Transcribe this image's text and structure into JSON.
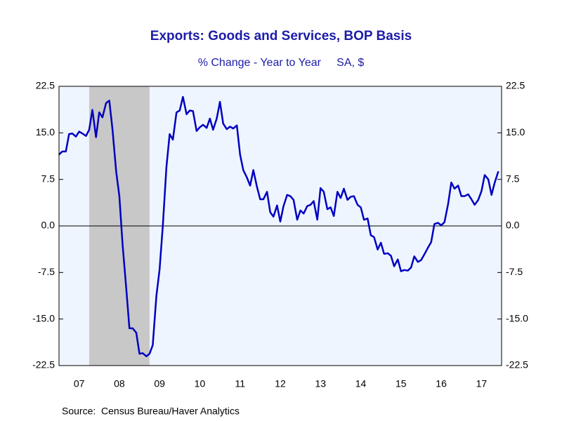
{
  "chart_data": {
    "type": "line",
    "title": "Exports: Goods and Services, BOP Basis",
    "subtitle": "% Change - Year to Year     SA, $",
    "source": "Source:  Census Bureau/Haver Analytics",
    "xlim": [
      2007,
      2018
    ],
    "xticks": [
      {
        "value": 2007.5,
        "label": "07"
      },
      {
        "value": 2008.5,
        "label": "08"
      },
      {
        "value": 2009.5,
        "label": "09"
      },
      {
        "value": 2010.5,
        "label": "10"
      },
      {
        "value": 2011.5,
        "label": "11"
      },
      {
        "value": 2012.5,
        "label": "12"
      },
      {
        "value": 2013.5,
        "label": "13"
      },
      {
        "value": 2014.5,
        "label": "14"
      },
      {
        "value": 2015.5,
        "label": "15"
      },
      {
        "value": 2016.5,
        "label": "16"
      },
      {
        "value": 2017.5,
        "label": "17"
      }
    ],
    "ylim": [
      -22.5,
      22.5
    ],
    "yticks": [
      22.5,
      {
        "value": 15,
        "label": "15.0"
      },
      7.5,
      {
        "value": 0,
        "label": "0.0"
      },
      -7.5,
      {
        "value": -15,
        "label": "-15.0"
      },
      -22.5
    ],
    "recession": [
      2007.75,
      2009.25
    ],
    "x": [
      2007.0,
      2007.08,
      2007.17,
      2007.25,
      2007.33,
      2007.42,
      2007.5,
      2007.58,
      2007.67,
      2007.75,
      2007.83,
      2007.92,
      2008.0,
      2008.08,
      2008.17,
      2008.25,
      2008.33,
      2008.42,
      2008.5,
      2008.58,
      2008.67,
      2008.75,
      2008.83,
      2008.92,
      2009.0,
      2009.08,
      2009.17,
      2009.25,
      2009.33,
      2009.42,
      2009.5,
      2009.58,
      2009.67,
      2009.75,
      2009.83,
      2009.92,
      2010.0,
      2010.08,
      2010.17,
      2010.25,
      2010.33,
      2010.42,
      2010.5,
      2010.58,
      2010.67,
      2010.75,
      2010.83,
      2010.92,
      2011.0,
      2011.08,
      2011.17,
      2011.25,
      2011.33,
      2011.42,
      2011.5,
      2011.58,
      2011.67,
      2011.75,
      2011.83,
      2011.92,
      2012.0,
      2012.08,
      2012.17,
      2012.25,
      2012.33,
      2012.42,
      2012.5,
      2012.58,
      2012.67,
      2012.75,
      2012.83,
      2012.92,
      2013.0,
      2013.08,
      2013.17,
      2013.25,
      2013.33,
      2013.42,
      2013.5,
      2013.58,
      2013.67,
      2013.75,
      2013.83,
      2013.92,
      2014.0,
      2014.08,
      2014.17,
      2014.25,
      2014.33,
      2014.42,
      2014.5,
      2014.58,
      2014.67,
      2014.75,
      2014.83,
      2014.92,
      2015.0,
      2015.08,
      2015.17,
      2015.25,
      2015.33,
      2015.42,
      2015.5,
      2015.58,
      2015.67,
      2015.75,
      2015.83,
      2015.92,
      2016.0,
      2016.08,
      2016.17,
      2016.25,
      2016.33,
      2016.42,
      2016.5,
      2016.58,
      2016.67,
      2016.75,
      2016.83,
      2016.92,
      2017.0,
      2017.08,
      2017.17,
      2017.25,
      2017.33,
      2017.42,
      2017.5,
      2017.58,
      2017.67,
      2017.75,
      2017.83,
      2017.92
    ],
    "series": [
      {
        "color": "#0000c0",
        "values": [
          11.5,
          12,
          12,
          14.8,
          14.9,
          14.4,
          15.2,
          14.9,
          14.5,
          15.5,
          18.7,
          14.3,
          18.3,
          17.5,
          19.8,
          20.2,
          15.5,
          8.8,
          4.8,
          -3,
          -10,
          -16.5,
          -16.5,
          -17.2,
          -20.6,
          -20.5,
          -21,
          -20.6,
          -19.2,
          -11.3,
          -7,
          0,
          9.5,
          14.8,
          13.9,
          18.3,
          18.6,
          20.8,
          18,
          18.6,
          18.5,
          15.3,
          15.9,
          16.3,
          15.8,
          17.3,
          15.5,
          17.3,
          20,
          16.5,
          15.6,
          16,
          15.7,
          16.2,
          11.5,
          9,
          7.8,
          6.5,
          9,
          6.3,
          4.3,
          4.3,
          5.5,
          2.2,
          1.5,
          3.3,
          0.7,
          3.2,
          5,
          4.8,
          4.2,
          1,
          2.5,
          2,
          3.2,
          3.4,
          4,
          1,
          6.1,
          5.5,
          2.7,
          3,
          1.6,
          5.5,
          4.5,
          6,
          4.2,
          4.7,
          4.8,
          3.4,
          3,
          1,
          1.2,
          -1.5,
          -1.8,
          -3.8,
          -2.7,
          -4.5,
          -4.4,
          -4.8,
          -6.5,
          -5.4,
          -7.3,
          -7.1,
          -7.2,
          -6.7,
          -4.9,
          -5.8,
          -5.5,
          -4.6,
          -3.5,
          -2.6,
          0.3,
          0.5,
          0.1,
          0.6,
          3.5,
          7,
          6,
          6.5,
          4.8,
          4.8,
          5.1,
          4.3,
          3.4,
          4.2,
          5.6,
          8.2,
          7.5,
          5,
          7,
          8.8
        ]
      }
    ]
  }
}
